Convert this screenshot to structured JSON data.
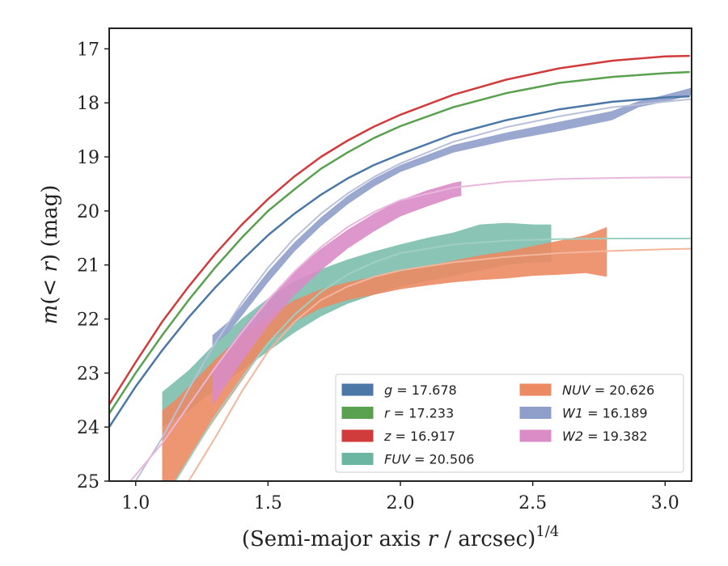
{
  "chart_data": {
    "type": "line",
    "xlabel_main": "(Semi-major axis ",
    "xlabel_var": "r",
    "xlabel_rest": " / arcsec)",
    "xlabel_sup": "1/4",
    "ylabel_main": "m(< r) (mag)",
    "ylabel_m": "m",
    "ylabel_open": "(",
    "ylabel_lt": "< ",
    "ylabel_r": "r",
    "ylabel_close": ") (mag)",
    "xlim": [
      0.9,
      3.1
    ],
    "ylim": [
      25.0,
      16.62
    ],
    "y_inverted": true,
    "xticks": [
      "1.0",
      "1.5",
      "2.0",
      "2.5",
      "3.0"
    ],
    "xtick_values": [
      1.0,
      1.5,
      2.0,
      2.5,
      3.0
    ],
    "yticks": [
      "17",
      "18",
      "19",
      "20",
      "21",
      "22",
      "23",
      "24",
      "25"
    ],
    "ytick_values": [
      17,
      18,
      19,
      20,
      21,
      22,
      23,
      24,
      25
    ],
    "legend": {
      "placement": "lower-right",
      "entries": [
        {
          "label": "g = 17.678",
          "name": "g",
          "value": "17.678",
          "color": "#4c78a8"
        },
        {
          "label": "r = 17.233",
          "name": "r",
          "value": "17.233",
          "color": "#59a14f"
        },
        {
          "label": "z = 16.917",
          "name": "z",
          "value": "16.917",
          "color": "#d13b3b"
        },
        {
          "label": "FUV = 20.506",
          "name": "FUV",
          "value": "20.506",
          "color": "#6bb5a3"
        },
        {
          "label": "NUV = 20.626",
          "name": "NUV",
          "value": "20.626",
          "color": "#ec8a63"
        },
        {
          "label": "W1 = 16.189",
          "name": "W1",
          "value": "16.189",
          "color": "#8f9dc9"
        },
        {
          "label": "W2 = 19.382",
          "name": "W2",
          "value": "19.382",
          "color": "#d98cc6"
        }
      ]
    },
    "series": [
      {
        "name": "g",
        "kind": "line",
        "color": "#4c78a8",
        "width": 2.5,
        "x": [
          0.9,
          1.0,
          1.1,
          1.2,
          1.3,
          1.4,
          1.5,
          1.6,
          1.7,
          1.8,
          1.9,
          2.0,
          2.2,
          2.4,
          2.6,
          2.8,
          3.0,
          3.09
        ],
        "y": [
          24.0,
          23.25,
          22.58,
          21.97,
          21.42,
          20.92,
          20.45,
          20.05,
          19.7,
          19.4,
          19.15,
          18.95,
          18.58,
          18.32,
          18.12,
          17.98,
          17.9,
          17.88
        ]
      },
      {
        "name": "r",
        "kind": "line",
        "color": "#59a14f",
        "width": 2.5,
        "x": [
          0.9,
          1.0,
          1.1,
          1.2,
          1.3,
          1.4,
          1.5,
          1.6,
          1.7,
          1.8,
          1.9,
          2.0,
          2.2,
          2.4,
          2.6,
          2.8,
          3.0,
          3.09
        ],
        "y": [
          23.75,
          23.0,
          22.3,
          21.65,
          21.05,
          20.5,
          20.0,
          19.6,
          19.22,
          18.92,
          18.65,
          18.43,
          18.08,
          17.82,
          17.63,
          17.52,
          17.45,
          17.43
        ]
      },
      {
        "name": "z",
        "kind": "line",
        "color": "#d13b3b",
        "width": 2.5,
        "x": [
          0.9,
          1.0,
          1.1,
          1.2,
          1.3,
          1.4,
          1.5,
          1.6,
          1.7,
          1.8,
          1.9,
          2.0,
          2.2,
          2.4,
          2.6,
          2.8,
          3.0,
          3.09
        ],
        "y": [
          23.58,
          22.8,
          22.05,
          21.4,
          20.8,
          20.26,
          19.78,
          19.36,
          19.0,
          18.7,
          18.44,
          18.22,
          17.85,
          17.57,
          17.36,
          17.22,
          17.14,
          17.13
        ]
      },
      {
        "name": "W1 model",
        "kind": "line",
        "color": "#b9c1da",
        "width": 2,
        "x": [
          1.0,
          1.1,
          1.2,
          1.3,
          1.4,
          1.5,
          1.6,
          1.7,
          1.8,
          1.9,
          2.0,
          2.2,
          2.4,
          2.6,
          2.8,
          3.0,
          3.1
        ],
        "y": [
          25.0,
          24.2,
          23.3,
          22.45,
          21.7,
          21.05,
          20.5,
          20.05,
          19.68,
          19.37,
          19.12,
          18.72,
          18.45,
          18.25,
          18.08,
          17.98,
          17.93
        ]
      },
      {
        "name": "W2 model",
        "kind": "line",
        "color": "#e8b8dc",
        "width": 2,
        "x": [
          0.98,
          1.1,
          1.2,
          1.3,
          1.4,
          1.5,
          1.6,
          1.7,
          1.8,
          1.9,
          2.0,
          2.2,
          2.4,
          2.6,
          2.8,
          3.0,
          3.1
        ],
        "y": [
          25.0,
          24.3,
          23.6,
          22.9,
          22.25,
          21.65,
          21.12,
          20.67,
          20.3,
          20.02,
          19.8,
          19.57,
          19.46,
          19.41,
          19.39,
          19.38,
          19.38
        ]
      },
      {
        "name": "FUV model",
        "kind": "line",
        "color": "#9fd0c2",
        "width": 2,
        "x": [
          1.15,
          1.2,
          1.3,
          1.4,
          1.5,
          1.6,
          1.7,
          1.8,
          1.9,
          2.0,
          2.2,
          2.4,
          2.6,
          2.8,
          3.0,
          3.1
        ],
        "y": [
          25.0,
          24.6,
          23.8,
          23.1,
          22.45,
          21.92,
          21.5,
          21.18,
          20.95,
          20.78,
          20.62,
          20.55,
          20.52,
          20.51,
          20.51,
          20.51
        ]
      },
      {
        "name": "NUV model",
        "kind": "line",
        "color": "#f3b69c",
        "width": 2,
        "x": [
          1.2,
          1.3,
          1.4,
          1.5,
          1.6,
          1.7,
          1.8,
          1.9,
          2.0,
          2.2,
          2.4,
          2.6,
          2.8,
          3.0,
          3.1
        ],
        "y": [
          25.0,
          24.2,
          23.35,
          22.6,
          22.05,
          21.65,
          21.4,
          21.22,
          21.1,
          20.95,
          20.85,
          20.78,
          20.74,
          20.71,
          20.7
        ]
      },
      {
        "name": "FUV",
        "kind": "band",
        "color": "#6bb5a3",
        "opacity": 0.8,
        "x": [
          1.1,
          1.2,
          1.3,
          1.4,
          1.5,
          1.6,
          1.7,
          1.8,
          1.9,
          2.0,
          2.1,
          2.2,
          2.3,
          2.4,
          2.5,
          2.57
        ],
        "ylow": [
          23.35,
          22.95,
          22.45,
          22.0,
          21.62,
          21.3,
          21.08,
          20.9,
          20.75,
          20.62,
          20.5,
          20.4,
          20.25,
          20.22,
          20.25,
          20.25
        ],
        "yhigh": [
          24.0,
          23.7,
          23.3,
          22.95,
          22.6,
          22.25,
          21.95,
          21.72,
          21.55,
          21.4,
          21.3,
          21.2,
          21.1,
          21.0,
          20.95,
          20.95
        ]
      },
      {
        "name": "NUV",
        "kind": "band",
        "color": "#ec8a63",
        "opacity": 0.9,
        "x": [
          1.1,
          1.15,
          1.2,
          1.3,
          1.4,
          1.5,
          1.6,
          1.7,
          1.8,
          1.9,
          2.0,
          2.1,
          2.2,
          2.3,
          2.4,
          2.5,
          2.6,
          2.7,
          2.78
        ],
        "ylow": [
          23.7,
          23.5,
          23.25,
          22.75,
          22.3,
          21.95,
          21.65,
          21.45,
          21.32,
          21.22,
          21.12,
          21.02,
          20.92,
          20.82,
          20.75,
          20.65,
          20.55,
          20.45,
          20.3
        ],
        "yhigh": [
          25.0,
          25.0,
          24.6,
          23.85,
          23.15,
          22.45,
          22.05,
          21.8,
          21.65,
          21.55,
          21.45,
          21.38,
          21.32,
          21.28,
          21.25,
          21.2,
          21.18,
          21.15,
          21.22
        ]
      },
      {
        "name": "W1",
        "kind": "band",
        "color": "#8f9dc9",
        "opacity": 0.9,
        "x": [
          1.29,
          1.35,
          1.4,
          1.5,
          1.6,
          1.7,
          1.8,
          1.9,
          2.0,
          2.2,
          2.4,
          2.6,
          2.8,
          2.9,
          3.0,
          3.1
        ],
        "ylow": [
          22.3,
          22.05,
          21.75,
          21.12,
          20.58,
          20.12,
          19.72,
          19.4,
          19.15,
          18.78,
          18.55,
          18.35,
          18.15,
          17.97,
          17.85,
          17.72
        ],
        "yhigh": [
          22.5,
          22.25,
          21.95,
          21.32,
          20.75,
          20.28,
          19.88,
          19.55,
          19.28,
          18.92,
          18.7,
          18.52,
          18.32,
          18.08,
          17.98,
          17.86
        ]
      },
      {
        "name": "W2",
        "kind": "band",
        "color": "#d98cc6",
        "opacity": 0.9,
        "x": [
          1.29,
          1.4,
          1.5,
          1.6,
          1.7,
          1.8,
          1.9,
          2.0,
          2.1,
          2.2,
          2.23
        ],
        "ylow": [
          22.95,
          22.2,
          21.62,
          21.12,
          20.7,
          20.35,
          20.05,
          19.8,
          19.62,
          19.48,
          19.45
        ],
        "yhigh": [
          23.6,
          22.8,
          22.12,
          21.56,
          21.1,
          20.7,
          20.38,
          20.1,
          19.92,
          19.75,
          19.72
        ]
      }
    ]
  }
}
